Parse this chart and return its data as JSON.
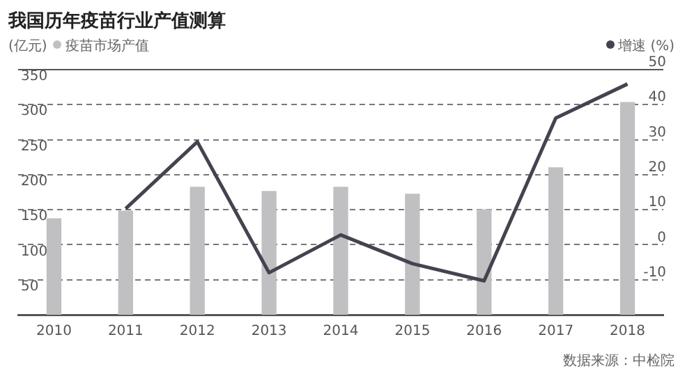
{
  "chart_data": {
    "type": "bar",
    "title": "我国历年疫苗行业产值测算",
    "ylabel": "(亿元)",
    "y2label": "(%)",
    "categories": [
      "2010",
      "2011",
      "2012",
      "2013",
      "2014",
      "2015",
      "2016",
      "2017",
      "2018"
    ],
    "series": [
      {
        "name": "疫苗市场产值",
        "color": "#c0c0c3",
        "values": [
          137,
          148,
          182,
          176,
          182,
          172,
          150,
          210,
          303
        ]
      },
      {
        "name": "增速",
        "type": "line",
        "axis": "y2",
        "color": "#45434f",
        "values": [
          null,
          10.3,
          29.4,
          -8,
          2.8,
          -5.4,
          -10.3,
          36.2,
          45.9
        ]
      }
    ],
    "ylim": [
      0,
      350
    ],
    "yticks": [
      50,
      100,
      150,
      200,
      250,
      300,
      350
    ],
    "y2lim": [
      -20,
      50
    ],
    "y2ticks": [
      -10,
      0,
      10,
      20,
      30,
      40,
      50
    ],
    "grid": "y",
    "legend": "top",
    "marker": "none",
    "annotations": [
      "数据来源：中检院"
    ]
  }
}
